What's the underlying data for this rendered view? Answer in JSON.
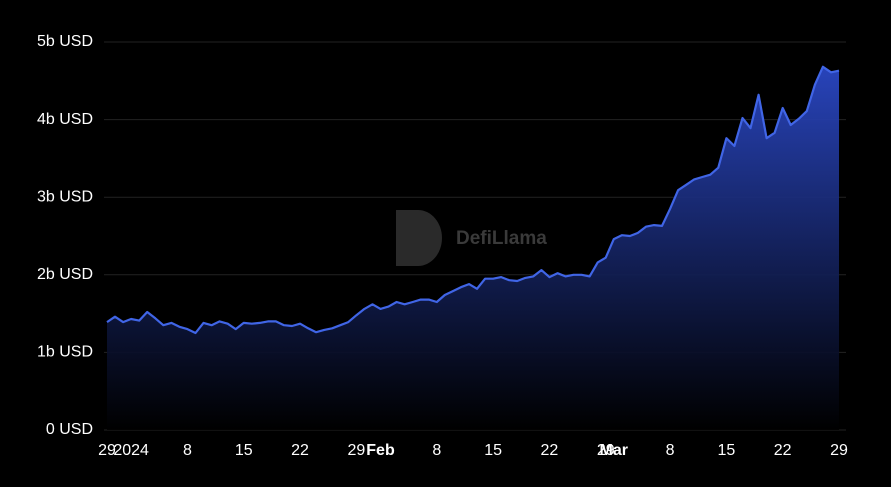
{
  "chart_data": {
    "type": "area",
    "watermark": "DefiLlama",
    "categories": [
      "29",
      null,
      null,
      "2024",
      null,
      null,
      null,
      null,
      null,
      null,
      "8",
      null,
      null,
      null,
      null,
      null,
      null,
      "15",
      null,
      null,
      null,
      null,
      null,
      null,
      "22",
      null,
      null,
      null,
      null,
      null,
      null,
      "29",
      null,
      null,
      "Feb",
      null,
      null,
      null,
      null,
      null,
      null,
      "8",
      null,
      null,
      null,
      null,
      null,
      null,
      "15",
      null,
      null,
      null,
      null,
      null,
      null,
      "22",
      null,
      null,
      null,
      null,
      null,
      null,
      "29",
      "Mar",
      null,
      null,
      null,
      null,
      null,
      null,
      "8",
      null,
      null,
      null,
      null,
      null,
      null,
      "15",
      null,
      null,
      null,
      null,
      null,
      null,
      "22",
      null,
      null,
      null,
      null,
      null,
      null,
      "29"
    ],
    "series": [
      {
        "color": "#4065e6",
        "values": [
          1.39,
          1.46,
          1.39,
          1.43,
          1.41,
          1.52,
          1.44,
          1.35,
          1.38,
          1.33,
          1.3,
          1.25,
          1.38,
          1.35,
          1.4,
          1.37,
          1.3,
          1.38,
          1.37,
          1.38,
          1.4,
          1.4,
          1.35,
          1.34,
          1.37,
          1.31,
          1.26,
          1.29,
          1.31,
          1.35,
          1.39,
          1.48,
          1.56,
          1.62,
          1.56,
          1.59,
          1.65,
          1.62,
          1.65,
          1.68,
          1.68,
          1.65,
          1.74,
          1.79,
          1.84,
          1.88,
          1.82,
          1.95,
          1.95,
          1.97,
          1.93,
          1.92,
          1.96,
          1.98,
          2.06,
          1.97,
          2.02,
          1.98,
          2.0,
          2.0,
          1.98,
          2.16,
          2.22,
          2.46,
          2.51,
          2.5,
          2.54,
          2.62,
          2.64,
          2.63,
          2.85,
          3.09,
          3.16,
          3.23,
          3.26,
          3.29,
          3.38,
          3.76,
          3.66,
          4.02,
          3.89,
          4.32,
          3.76,
          3.83,
          4.15,
          3.93,
          4.01,
          4.11,
          4.45,
          4.68,
          4.61,
          4.63
        ]
      }
    ],
    "ylim": [
      0,
      5
    ],
    "yticks": [
      {
        "value": 0,
        "label": "0 USD"
      },
      {
        "value": 1,
        "label": "1b USD"
      },
      {
        "value": 2,
        "label": "2b USD"
      },
      {
        "value": 3,
        "label": "3b USD"
      },
      {
        "value": 4,
        "label": "4b USD"
      },
      {
        "value": 5,
        "label": "5b USD"
      }
    ],
    "grid": true
  }
}
